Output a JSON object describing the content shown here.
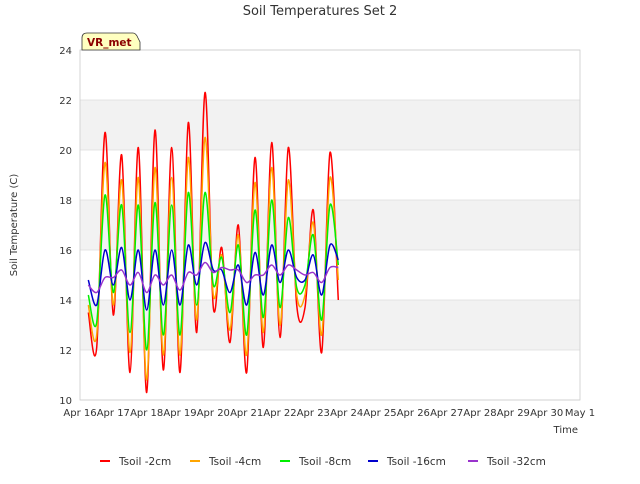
{
  "chart_data": {
    "type": "line",
    "title": "Soil Temperatures Set 2",
    "xlabel": "Time",
    "ylabel": "Soil Temperature (C)",
    "badge": "VR_met",
    "ylim": [
      10,
      24
    ],
    "yticks": [
      10,
      12,
      14,
      16,
      18,
      20,
      22,
      24
    ],
    "xlim": [
      0,
      15
    ],
    "xtick_labels": [
      "Apr 16",
      "Apr 17",
      "Apr 18",
      "Apr 19",
      "Apr 20",
      "Apr 21",
      "Apr 22",
      "Apr 23",
      "Apr 24",
      "Apr 25",
      "Apr 26",
      "Apr 27",
      "Apr 28",
      "Apr 29",
      "Apr 30",
      "May 1"
    ],
    "grid": true,
    "legend_position": "bottom",
    "x_step_days": 0.25,
    "x_start_day": 0.25,
    "series": [
      {
        "name": "Tsoil -2cm",
        "color": "#ff0000",
        "values": [
          13.5,
          12.1,
          20.7,
          13.4,
          19.8,
          11.1,
          20.1,
          10.3,
          20.8,
          11.2,
          20.1,
          11.1,
          21.1,
          12.7,
          22.3,
          13.7,
          16.1,
          12.3,
          17.0,
          11.1,
          19.7,
          12.1,
          20.3,
          12.5,
          20.1,
          13.8,
          13.7,
          17.6,
          11.9,
          19.9,
          14.0
        ]
      },
      {
        "name": "Tsoil -4cm",
        "color": "#ffa500",
        "values": [
          13.8,
          12.6,
          19.5,
          13.8,
          18.8,
          11.9,
          18.9,
          10.8,
          19.3,
          11.8,
          18.9,
          11.8,
          19.7,
          13.2,
          20.5,
          14.2,
          15.8,
          12.8,
          16.6,
          11.8,
          18.7,
          12.7,
          19.3,
          13.0,
          18.8,
          14.2,
          14.2,
          17.1,
          12.6,
          18.9,
          14.8
        ]
      },
      {
        "name": "Tsoil -8cm",
        "color": "#00ee00",
        "values": [
          14.2,
          13.1,
          18.2,
          14.3,
          17.8,
          12.7,
          17.8,
          12.0,
          17.9,
          12.6,
          17.8,
          12.6,
          18.3,
          13.8,
          18.3,
          14.6,
          15.7,
          13.5,
          16.2,
          12.6,
          17.6,
          13.3,
          18.0,
          13.7,
          17.3,
          14.5,
          14.6,
          16.6,
          13.2,
          17.8,
          15.4
        ]
      },
      {
        "name": "Tsoil -16cm",
        "color": "#0000cc",
        "values": [
          14.8,
          13.8,
          16.0,
          14.6,
          16.1,
          14.0,
          16.0,
          13.6,
          16.0,
          13.8,
          16.0,
          13.8,
          16.2,
          14.6,
          16.3,
          15.2,
          15.2,
          14.3,
          15.4,
          13.8,
          15.9,
          14.2,
          16.2,
          14.7,
          16.0,
          14.9,
          14.8,
          15.8,
          14.2,
          16.2,
          15.6
        ]
      },
      {
        "name": "Tsoil -32cm",
        "color": "#9933cc",
        "values": [
          14.6,
          14.3,
          14.9,
          14.9,
          15.2,
          14.6,
          15.1,
          14.3,
          15.0,
          14.6,
          15.0,
          14.4,
          15.1,
          15.0,
          15.5,
          15.1,
          15.3,
          15.2,
          15.2,
          14.7,
          15.0,
          15.0,
          15.4,
          15.0,
          15.4,
          15.2,
          15.0,
          15.1,
          14.7,
          15.3,
          15.3
        ]
      }
    ]
  }
}
